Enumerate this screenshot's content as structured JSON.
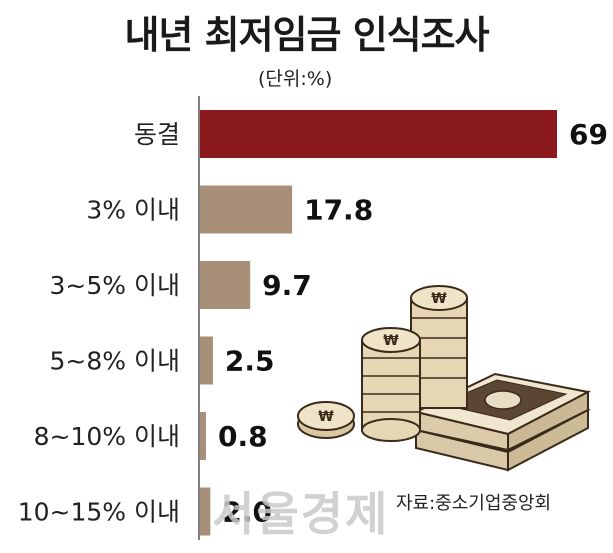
{
  "chart_data": {
    "type": "bar",
    "orientation": "horizontal",
    "title": "내년 최저임금 인식조사",
    "unit": "(단위:%)",
    "categories": [
      "동결",
      "3% 이내",
      "3~5% 이내",
      "5~8% 이내",
      "8~10% 이내",
      "10~15% 이내"
    ],
    "values": [
      69,
      17.8,
      9.7,
      2.5,
      0.8,
      2.0
    ],
    "value_labels": [
      "69",
      "17.8",
      "9.7",
      "2.5",
      "0.8",
      "2.0"
    ],
    "xlim": [
      0,
      69
    ],
    "grid": false,
    "legend": "none",
    "highlight_color": "#8b1a1e",
    "bar_color": "#a89078"
  },
  "source": "자료:중소기업중앙회",
  "watermark": "서울경제"
}
